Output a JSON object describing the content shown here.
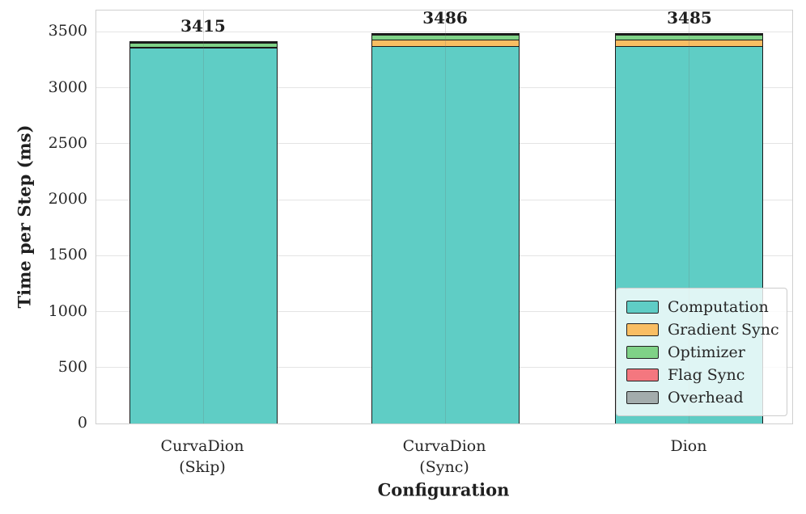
{
  "chart_data": {
    "type": "bar",
    "stacked": true,
    "title": "",
    "xlabel": "Configuration",
    "ylabel": "Time per Step (ms)",
    "categories": [
      "CurvaDion\n(Skip)",
      "CurvaDion\n(Sync)",
      "Dion"
    ],
    "series": [
      {
        "name": "Computation",
        "color": "#5FCDC5",
        "values": [
          3360,
          3370,
          3370
        ]
      },
      {
        "name": "Gradient Sync",
        "color": "#F9BE63",
        "values": [
          2,
          58,
          57
        ]
      },
      {
        "name": "Optimizer",
        "color": "#7FD287",
        "values": [
          39,
          44,
          44
        ]
      },
      {
        "name": "Flag Sync",
        "color": "#F4777F",
        "values": [
          7,
          7,
          7
        ]
      },
      {
        "name": "Overhead",
        "color": "#A3ACAC",
        "values": [
          7,
          7,
          7
        ]
      }
    ],
    "totals": [
      3415,
      3486,
      3485
    ],
    "ylim": [
      0,
      3690
    ],
    "yticks": [
      0,
      500,
      1000,
      1500,
      2000,
      2500,
      3000,
      3500
    ],
    "grid": true,
    "legend_position": "lower right",
    "bar_edge_color": "#1b1b1b"
  },
  "colors": {
    "text": "#262626",
    "grid_line": "#e4e4e4",
    "spine": "#cfcfcf",
    "legend_border": "#cccccc"
  }
}
